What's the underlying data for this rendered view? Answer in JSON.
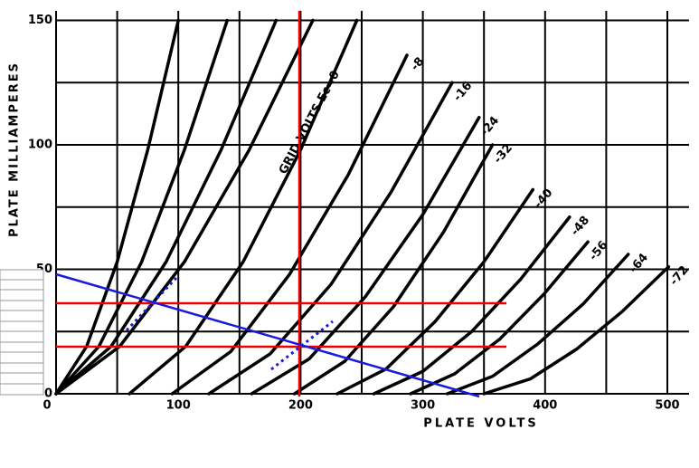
{
  "chart_data": {
    "type": "line",
    "xlabel": "PLATE VOLTS",
    "ylabel": "PLATE MILLIAMPERES",
    "xlim": [
      0,
      500
    ],
    "ylim": [
      0,
      150
    ],
    "xticks": [
      0,
      100,
      200,
      300,
      400,
      500
    ],
    "yticks": [
      0,
      50,
      100,
      150
    ],
    "xgrid": [
      0,
      50,
      100,
      150,
      200,
      250,
      300,
      350,
      400,
      450,
      500
    ],
    "ygrid": [
      0,
      25,
      50,
      75,
      100,
      125,
      150
    ],
    "grid": true,
    "color": "#000000",
    "series": [
      {
        "x": [
          0,
          25,
          50,
          75,
          100
        ],
        "values": [
          0,
          19,
          53,
          98,
          150
        ]
      },
      {
        "x": [
          0,
          35,
          70,
          105,
          140
        ],
        "values": [
          0,
          19,
          53,
          98,
          150
        ]
      },
      {
        "x": [
          0,
          45,
          90,
          135,
          180
        ],
        "values": [
          0,
          19,
          53,
          98,
          150
        ]
      },
      {
        "x": [
          0,
          52,
          105,
          158,
          210
        ],
        "values": [
          0,
          19,
          53,
          98,
          150
        ]
      },
      {
        "name": "GRID VOLTS Ec=0",
        "x": [
          60,
          106,
          153,
          200,
          246
        ],
        "values": [
          0,
          19,
          53,
          98,
          150
        ]
      },
      {
        "name": "-8",
        "x": [
          95,
          143,
          191,
          239,
          287
        ],
        "values": [
          0,
          17,
          48,
          88,
          136
        ]
      },
      {
        "name": "-16",
        "x": [
          125,
          175,
          225,
          274,
          324
        ],
        "values": [
          0,
          16,
          44,
          81,
          125
        ]
      },
      {
        "name": "-24",
        "x": [
          160,
          207,
          253,
          300,
          346
        ],
        "values": [
          0,
          14,
          39,
          72,
          111
        ]
      },
      {
        "name": "-32",
        "x": [
          195,
          236,
          276,
          317,
          357
        ],
        "values": [
          0,
          13,
          35,
          65,
          100
        ]
      },
      {
        "name": "-40",
        "x": [
          230,
          270,
          310,
          350,
          390
        ],
        "values": [
          0,
          10,
          29,
          53,
          82
        ]
      },
      {
        "name": "-48",
        "x": [
          260,
          300,
          340,
          380,
          420
        ],
        "values": [
          0,
          9,
          25,
          46,
          71
        ]
      },
      {
        "name": "-56",
        "x": [
          290,
          326,
          363,
          399,
          435
        ],
        "values": [
          0,
          8,
          22,
          40,
          61
        ]
      },
      {
        "name": "-64",
        "x": [
          320,
          357,
          394,
          431,
          468
        ],
        "values": [
          0,
          7,
          20,
          36,
          56
        ]
      },
      {
        "name": "-72",
        "x": [
          350,
          388,
          426,
          463,
          501
        ],
        "values": [
          0,
          6,
          18,
          33,
          51
        ]
      }
    ]
  }
}
